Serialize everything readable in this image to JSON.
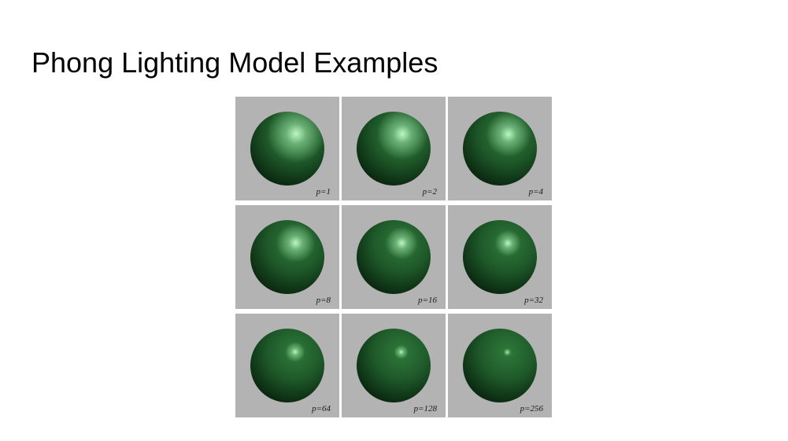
{
  "slide": {
    "title": "Phong Lighting Model Examples"
  },
  "grid": {
    "panels": [
      {
        "label": "p=1",
        "exponent": 1
      },
      {
        "label": "p=2",
        "exponent": 2
      },
      {
        "label": "p=4",
        "exponent": 4
      },
      {
        "label": "p=8",
        "exponent": 8
      },
      {
        "label": "p=16",
        "exponent": 16
      },
      {
        "label": "p=32",
        "exponent": 32
      },
      {
        "label": "p=64",
        "exponent": 64
      },
      {
        "label": "p=128",
        "exponent": 128
      },
      {
        "label": "p=256",
        "exponent": 256
      }
    ],
    "colors": {
      "panel_background": "#b3b3b3",
      "sphere_diffuse": "#1f5a2a",
      "sphere_highlight": "#bdf5c4",
      "sphere_shadow": "#020803"
    }
  }
}
